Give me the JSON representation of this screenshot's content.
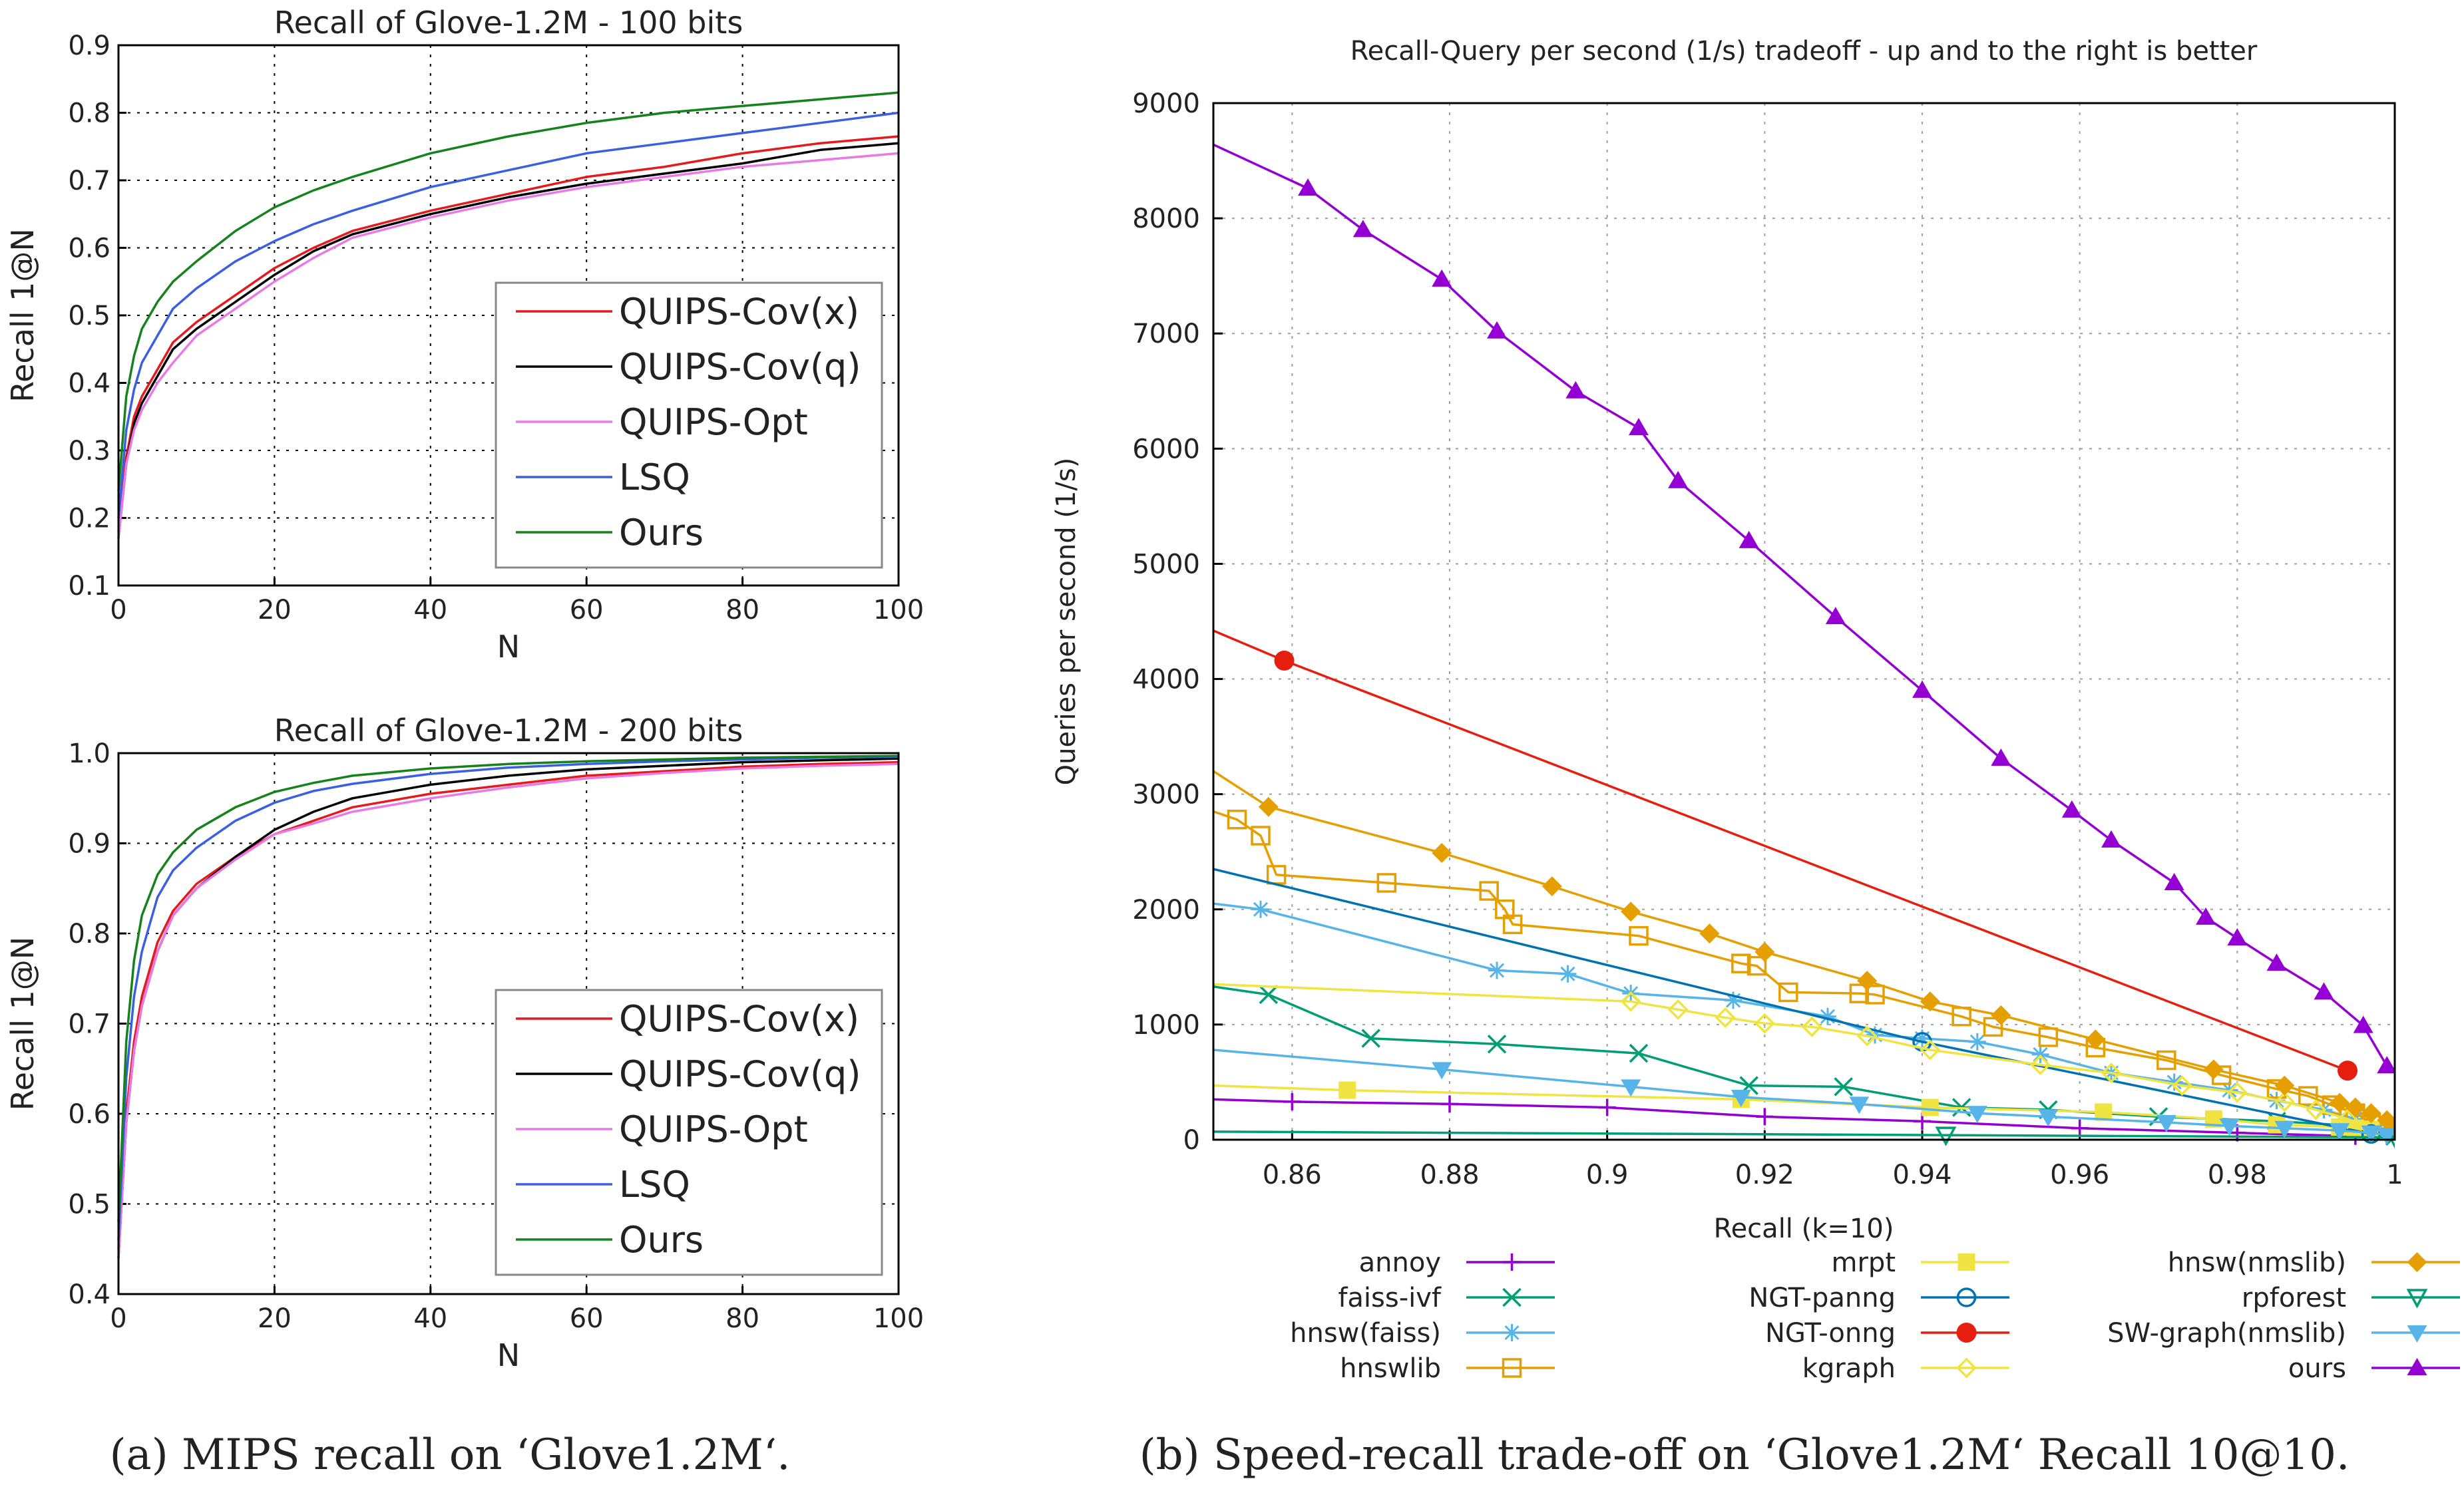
{
  "captions": {
    "left": "(a) MIPS recall on ‘Glove1.2M‘.",
    "right": "(b) Speed-recall trade-off on ‘Glove1.2M‘ Recall 10@10."
  },
  "chart_data": [
    {
      "type": "line",
      "title": "Recall of Glove-1.2M - 100 bits",
      "xlabel": "N",
      "ylabel": "Recall 1@N",
      "xlim": [
        0,
        100
      ],
      "ylim": [
        0.1,
        0.9
      ],
      "xticks": [
        "0",
        "20",
        "40",
        "60",
        "80",
        "100"
      ],
      "yticks": [
        "0.1",
        "0.2",
        "0.3",
        "0.4",
        "0.5",
        "0.6",
        "0.7",
        "0.8",
        "0.9"
      ],
      "grid": true,
      "legend_position": "lower-right",
      "x": [
        0,
        1,
        2,
        3,
        5,
        7,
        10,
        15,
        20,
        25,
        30,
        40,
        50,
        60,
        70,
        80,
        90,
        100
      ],
      "series": [
        {
          "name": "QUIPS-Cov(x)",
          "color": "#e41a1c",
          "values": [
            0.18,
            0.29,
            0.35,
            0.38,
            0.42,
            0.46,
            0.49,
            0.53,
            0.57,
            0.6,
            0.625,
            0.655,
            0.68,
            0.705,
            0.72,
            0.74,
            0.755,
            0.765
          ]
        },
        {
          "name": "QUIPS-Cov(q)",
          "color": "#000000",
          "values": [
            0.17,
            0.28,
            0.34,
            0.37,
            0.41,
            0.45,
            0.48,
            0.52,
            0.56,
            0.595,
            0.62,
            0.65,
            0.675,
            0.695,
            0.71,
            0.725,
            0.745,
            0.755
          ]
        },
        {
          "name": "QUIPS-Opt",
          "color": "#e87ae8",
          "values": [
            0.17,
            0.28,
            0.33,
            0.36,
            0.4,
            0.43,
            0.47,
            0.51,
            0.55,
            0.585,
            0.615,
            0.645,
            0.67,
            0.69,
            0.705,
            0.72,
            0.73,
            0.74
          ]
        },
        {
          "name": "LSQ",
          "color": "#3a5fe0",
          "values": [
            0.2,
            0.33,
            0.39,
            0.43,
            0.47,
            0.51,
            0.54,
            0.58,
            0.61,
            0.635,
            0.655,
            0.69,
            0.715,
            0.74,
            0.755,
            0.77,
            0.785,
            0.8
          ]
        },
        {
          "name": "Ours",
          "color": "#16821c",
          "values": [
            0.24,
            0.38,
            0.44,
            0.48,
            0.52,
            0.55,
            0.58,
            0.625,
            0.66,
            0.685,
            0.705,
            0.74,
            0.765,
            0.785,
            0.8,
            0.81,
            0.82,
            0.83
          ]
        }
      ]
    },
    {
      "type": "line",
      "title": "Recall of Glove-1.2M - 200 bits",
      "xlabel": "N",
      "ylabel": "Recall 1@N",
      "xlim": [
        0,
        100
      ],
      "ylim": [
        0.4,
        1.0
      ],
      "xticks": [
        "0",
        "20",
        "40",
        "60",
        "80",
        "100"
      ],
      "yticks": [
        "0.4",
        "0.5",
        "0.6",
        "0.7",
        "0.8",
        "0.9",
        "1.0"
      ],
      "grid": true,
      "legend_position": "lower-right",
      "x": [
        0,
        1,
        2,
        3,
        5,
        7,
        10,
        15,
        20,
        25,
        30,
        40,
        50,
        60,
        70,
        80,
        90,
        100
      ],
      "series": [
        {
          "name": "QUIPS-Cov(x)",
          "color": "#e41a1c",
          "values": [
            0.45,
            0.6,
            0.68,
            0.73,
            0.79,
            0.825,
            0.855,
            0.885,
            0.91,
            0.925,
            0.94,
            0.955,
            0.965,
            0.975,
            0.98,
            0.985,
            0.988,
            0.99
          ]
        },
        {
          "name": "QUIPS-Cov(q)",
          "color": "#000000",
          "values": [
            0.44,
            0.59,
            0.67,
            0.72,
            0.78,
            0.82,
            0.85,
            0.885,
            0.915,
            0.935,
            0.95,
            0.965,
            0.975,
            0.982,
            0.986,
            0.99,
            0.992,
            0.994
          ]
        },
        {
          "name": "QUIPS-Opt",
          "color": "#e87ae8",
          "values": [
            0.44,
            0.59,
            0.67,
            0.72,
            0.78,
            0.82,
            0.85,
            0.882,
            0.91,
            0.922,
            0.935,
            0.95,
            0.962,
            0.972,
            0.978,
            0.983,
            0.986,
            0.988
          ]
        },
        {
          "name": "LSQ",
          "color": "#3a5fe0",
          "values": [
            0.46,
            0.64,
            0.73,
            0.78,
            0.84,
            0.87,
            0.895,
            0.925,
            0.945,
            0.958,
            0.966,
            0.977,
            0.984,
            0.988,
            0.991,
            0.993,
            0.995,
            0.996
          ]
        },
        {
          "name": "Ours",
          "color": "#16821c",
          "values": [
            0.48,
            0.68,
            0.77,
            0.82,
            0.865,
            0.89,
            0.915,
            0.94,
            0.957,
            0.967,
            0.975,
            0.983,
            0.988,
            0.991,
            0.993,
            0.995,
            0.996,
            0.997
          ]
        }
      ]
    },
    {
      "type": "line",
      "title": "Recall-Query per second (1/s) tradeoff - up and to the right is better",
      "xlabel": "Recall (k=10)",
      "ylabel": "Queries per second (1/s)",
      "xlim": [
        0.85,
        1.0
      ],
      "ylim": [
        0,
        9000
      ],
      "xticks": [
        "0.86",
        "0.88",
        "0.9",
        "0.92",
        "0.94",
        "0.96",
        "0.98",
        "1"
      ],
      "yticks": [
        "0",
        "1000",
        "2000",
        "3000",
        "4000",
        "5000",
        "6000",
        "7000",
        "8000",
        "9000"
      ],
      "grid": true,
      "legend_position": "below",
      "series": [
        {
          "name": "annoy",
          "color": "#9400d3",
          "marker": "plus",
          "points": [
            [
              0.85,
              350
            ],
            [
              0.86,
              330
            ],
            [
              0.88,
              310
            ],
            [
              0.9,
              280
            ],
            [
              0.92,
              200
            ],
            [
              0.94,
              160
            ],
            [
              0.96,
              100
            ],
            [
              0.98,
              60
            ],
            [
              0.995,
              30
            ]
          ]
        },
        {
          "name": "faiss-ivf",
          "color": "#009e73",
          "marker": "cross",
          "points": [
            [
              0.85,
              1330
            ],
            [
              0.857,
              1260
            ],
            [
              0.87,
              880
            ],
            [
              0.886,
              830
            ],
            [
              0.904,
              750
            ],
            [
              0.918,
              470
            ],
            [
              0.93,
              460
            ],
            [
              0.945,
              280
            ],
            [
              0.956,
              260
            ],
            [
              0.97,
              200
            ],
            [
              0.985,
              160
            ],
            [
              0.995,
              120
            ],
            [
              1.0,
              30
            ]
          ]
        },
        {
          "name": "hnsw(faiss)",
          "color": "#56b4e9",
          "marker": "asterisk",
          "points": [
            [
              0.85,
              2050
            ],
            [
              0.856,
              2000
            ],
            [
              0.886,
              1470
            ],
            [
              0.895,
              1440
            ],
            [
              0.903,
              1270
            ],
            [
              0.916,
              1210
            ],
            [
              0.928,
              1070
            ],
            [
              0.934,
              910
            ],
            [
              0.94,
              880
            ],
            [
              0.947,
              850
            ],
            [
              0.955,
              740
            ],
            [
              0.964,
              580
            ],
            [
              0.972,
              500
            ],
            [
              0.979,
              430
            ],
            [
              0.985,
              340
            ],
            [
              0.991,
              260
            ],
            [
              0.995,
              180
            ],
            [
              0.998,
              100
            ]
          ]
        },
        {
          "name": "hnswlib",
          "color": "#e69f00",
          "marker": "open-square",
          "points": [
            [
              0.85,
              2850
            ],
            [
              0.853,
              2780
            ],
            [
              0.856,
              2640
            ],
            [
              0.858,
              2300
            ],
            [
              0.872,
              2230
            ],
            [
              0.885,
              2160
            ],
            [
              0.887,
              2000
            ],
            [
              0.888,
              1870
            ],
            [
              0.904,
              1770
            ],
            [
              0.917,
              1530
            ],
            [
              0.919,
              1510
            ],
            [
              0.923,
              1280
            ],
            [
              0.932,
              1270
            ],
            [
              0.934,
              1260
            ],
            [
              0.945,
              1070
            ],
            [
              0.949,
              980
            ],
            [
              0.956,
              890
            ],
            [
              0.962,
              800
            ],
            [
              0.971,
              690
            ],
            [
              0.978,
              560
            ],
            [
              0.985,
              440
            ],
            [
              0.989,
              380
            ],
            [
              0.992,
              300
            ],
            [
              0.995,
              230
            ],
            [
              0.997,
              150
            ]
          ]
        },
        {
          "name": "mrpt",
          "color": "#f0e442",
          "marker": "filled-square",
          "points": [
            [
              0.85,
              470
            ],
            [
              0.867,
              430
            ],
            [
              0.917,
              350
            ],
            [
              0.941,
              280
            ],
            [
              0.963,
              240
            ],
            [
              0.977,
              180
            ],
            [
              0.985,
              130
            ],
            [
              0.993,
              110
            ],
            [
              0.995,
              100
            ],
            [
              0.997,
              90
            ]
          ]
        },
        {
          "name": "NGT-panng",
          "color": "#0072b2",
          "marker": "open-circle",
          "points": [
            [
              0.85,
              2350
            ],
            [
              0.94,
              850
            ],
            [
              0.997,
              50
            ]
          ]
        },
        {
          "name": "NGT-onng",
          "color": "#e51e10",
          "marker": "filled-circle",
          "points": [
            [
              0.85,
              4420
            ],
            [
              0.859,
              4160
            ],
            [
              0.994,
              600
            ]
          ]
        },
        {
          "name": "kgraph",
          "color": "#f0e442",
          "marker": "open-diamond",
          "points": [
            [
              0.85,
              1350
            ],
            [
              0.903,
              1200
            ],
            [
              0.909,
              1130
            ],
            [
              0.915,
              1060
            ],
            [
              0.92,
              1010
            ],
            [
              0.926,
              980
            ],
            [
              0.933,
              900
            ],
            [
              0.941,
              780
            ],
            [
              0.955,
              650
            ],
            [
              0.964,
              580
            ],
            [
              0.973,
              470
            ],
            [
              0.98,
              410
            ],
            [
              0.986,
              330
            ],
            [
              0.99,
              260
            ],
            [
              0.994,
              180
            ],
            [
              0.997,
              100
            ]
          ]
        },
        {
          "name": "hnsw(nmslib)",
          "color": "#e69f00",
          "marker": "filled-diamond",
          "points": [
            [
              0.85,
              3200
            ],
            [
              0.857,
              2890
            ],
            [
              0.879,
              2490
            ],
            [
              0.893,
              2200
            ],
            [
              0.903,
              1980
            ],
            [
              0.913,
              1790
            ],
            [
              0.92,
              1630
            ],
            [
              0.933,
              1380
            ],
            [
              0.941,
              1200
            ],
            [
              0.95,
              1080
            ],
            [
              0.962,
              870
            ],
            [
              0.977,
              610
            ],
            [
              0.986,
              470
            ],
            [
              0.993,
              320
            ],
            [
              0.995,
              280
            ],
            [
              0.997,
              230
            ],
            [
              0.999,
              170
            ],
            [
              1.0,
              110
            ]
          ]
        },
        {
          "name": "rpforest",
          "color": "#009e73",
          "marker": "open-triangle-down",
          "points": [
            [
              0.85,
              70
            ],
            [
              0.943,
              40
            ],
            [
              1.0,
              20
            ]
          ]
        },
        {
          "name": "SW-graph(nmslib)",
          "color": "#56b4e9",
          "marker": "filled-triangle-down",
          "points": [
            [
              0.85,
              780
            ],
            [
              0.879,
              610
            ],
            [
              0.903,
              460
            ],
            [
              0.917,
              370
            ],
            [
              0.932,
              310
            ],
            [
              0.947,
              230
            ],
            [
              0.956,
              200
            ],
            [
              0.971,
              150
            ],
            [
              0.979,
              120
            ],
            [
              0.986,
              100
            ],
            [
              0.993,
              80
            ],
            [
              0.997,
              60
            ],
            [
              0.999,
              40
            ]
          ]
        },
        {
          "name": "ours",
          "color": "#9400d3",
          "marker": "filled-triangle-up",
          "points": [
            [
              0.85,
              8650
            ],
            [
              0.85,
              8640
            ],
            [
              0.862,
              8260
            ],
            [
              0.869,
              7900
            ],
            [
              0.879,
              7470
            ],
            [
              0.886,
              7020
            ],
            [
              0.896,
              6500
            ],
            [
              0.904,
              6180
            ],
            [
              0.909,
              5720
            ],
            [
              0.918,
              5200
            ],
            [
              0.929,
              4540
            ],
            [
              0.94,
              3900
            ],
            [
              0.95,
              3310
            ],
            [
              0.959,
              2860
            ],
            [
              0.964,
              2600
            ],
            [
              0.972,
              2230
            ],
            [
              0.976,
              1930
            ],
            [
              0.98,
              1750
            ],
            [
              0.985,
              1530
            ],
            [
              0.991,
              1280
            ],
            [
              0.996,
              990
            ],
            [
              0.999,
              640
            ]
          ]
        }
      ]
    }
  ]
}
